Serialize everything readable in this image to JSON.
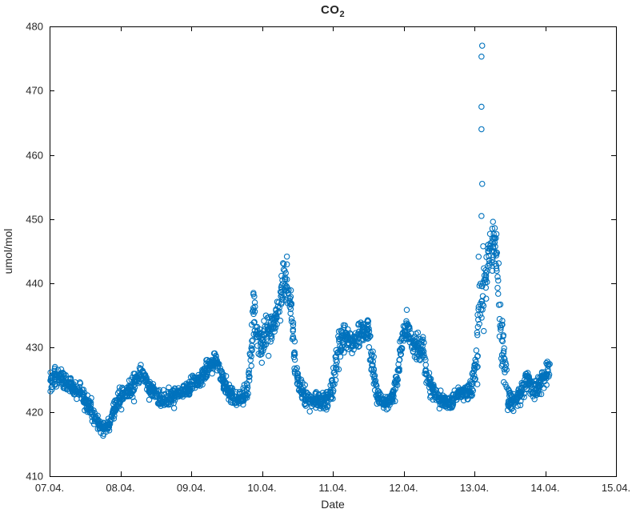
{
  "title": {
    "text": "CO",
    "subscript": "2"
  },
  "axes": {
    "xlabel": "Date",
    "ylabel": "umol/mol"
  },
  "chart_data": {
    "type": "scatter",
    "title": "CO_2",
    "xlabel": "Date",
    "ylabel": "umol/mol",
    "marker": "open-circle",
    "marker_color": "#0072BD",
    "grid": false,
    "legend": null,
    "x_unit": "day of April (7 = 07.04.)",
    "xlim": [
      7,
      15
    ],
    "ylim": [
      410,
      480
    ],
    "xticks": [
      7,
      8,
      9,
      10,
      11,
      12,
      13,
      14,
      15
    ],
    "xtick_labels": [
      "07.04.",
      "08.04.",
      "09.04.",
      "10.04.",
      "11.04.",
      "12.04.",
      "13.04.",
      "14.04.",
      "15.04."
    ],
    "yticks": [
      410,
      420,
      430,
      440,
      450,
      460,
      470,
      480
    ],
    "ytick_labels": [
      "410",
      "420",
      "430",
      "440",
      "450",
      "460",
      "470",
      "480"
    ],
    "points_per_day": 300,
    "trend": [
      [
        7.0,
        424.8,
        0.8
      ],
      [
        7.08,
        425.5,
        0.7
      ],
      [
        7.18,
        425.2,
        0.7
      ],
      [
        7.3,
        424.0,
        0.7
      ],
      [
        7.42,
        423.3,
        0.6
      ],
      [
        7.52,
        421.5,
        0.6
      ],
      [
        7.62,
        419.8,
        0.6
      ],
      [
        7.72,
        417.8,
        0.5
      ],
      [
        7.78,
        417.2,
        0.5
      ],
      [
        7.85,
        418.5,
        0.6
      ],
      [
        7.95,
        421.5,
        0.6
      ],
      [
        8.05,
        422.8,
        0.6
      ],
      [
        8.15,
        423.5,
        0.7
      ],
      [
        8.25,
        425.5,
        0.7
      ],
      [
        8.32,
        426.0,
        0.6
      ],
      [
        8.42,
        423.5,
        0.6
      ],
      [
        8.55,
        422.3,
        0.6
      ],
      [
        8.68,
        422.0,
        0.6
      ],
      [
        8.8,
        422.8,
        0.6
      ],
      [
        8.95,
        423.5,
        0.6
      ],
      [
        9.05,
        424.3,
        0.6
      ],
      [
        9.18,
        425.8,
        0.7
      ],
      [
        9.28,
        427.5,
        0.7
      ],
      [
        9.35,
        427.8,
        0.7
      ],
      [
        9.45,
        425.0,
        0.7
      ],
      [
        9.55,
        422.8,
        0.6
      ],
      [
        9.68,
        422.0,
        0.6
      ],
      [
        9.78,
        423.0,
        0.7
      ],
      [
        9.84,
        427.0,
        1.5
      ],
      [
        9.88,
        436.5,
        1.8
      ],
      [
        9.92,
        433.0,
        1.5
      ],
      [
        9.97,
        430.5,
        1.2
      ],
      [
        10.02,
        431.5,
        1.3
      ],
      [
        10.07,
        433.5,
        1.2
      ],
      [
        10.12,
        432.0,
        1.2
      ],
      [
        10.18,
        434.5,
        1.3
      ],
      [
        10.24,
        436.5,
        1.5
      ],
      [
        10.3,
        440.5,
        1.5
      ],
      [
        10.35,
        440.0,
        1.5
      ],
      [
        10.4,
        437.5,
        1.5
      ],
      [
        10.45,
        429.5,
        1.5
      ],
      [
        10.5,
        424.8,
        0.9
      ],
      [
        10.58,
        422.8,
        0.7
      ],
      [
        10.68,
        421.8,
        0.6
      ],
      [
        10.8,
        421.8,
        0.6
      ],
      [
        10.92,
        421.8,
        0.6
      ],
      [
        11.0,
        424.0,
        0.9
      ],
      [
        11.06,
        428.5,
        1.3
      ],
      [
        11.12,
        431.5,
        1.2
      ],
      [
        11.18,
        432.3,
        1.0
      ],
      [
        11.25,
        430.8,
        1.0
      ],
      [
        11.33,
        431.3,
        1.0
      ],
      [
        11.42,
        432.3,
        1.0
      ],
      [
        11.5,
        433.0,
        1.0
      ],
      [
        11.56,
        427.0,
        1.4
      ],
      [
        11.62,
        422.8,
        0.8
      ],
      [
        11.7,
        421.3,
        0.6
      ],
      [
        11.8,
        421.8,
        0.6
      ],
      [
        11.88,
        423.5,
        0.8
      ],
      [
        11.94,
        428.5,
        1.2
      ],
      [
        12.0,
        432.0,
        1.0
      ],
      [
        12.06,
        433.0,
        0.9
      ],
      [
        12.12,
        430.3,
        0.9
      ],
      [
        12.2,
        430.0,
        0.9
      ],
      [
        12.27,
        429.8,
        0.9
      ],
      [
        12.33,
        425.5,
        0.9
      ],
      [
        12.4,
        424.0,
        0.7
      ],
      [
        12.48,
        422.5,
        0.6
      ],
      [
        12.56,
        421.8,
        0.6
      ],
      [
        12.64,
        421.3,
        0.6
      ],
      [
        12.72,
        422.0,
        0.6
      ],
      [
        12.8,
        423.3,
        0.6
      ],
      [
        12.88,
        422.8,
        0.6
      ],
      [
        12.96,
        423.8,
        0.7
      ],
      [
        13.02,
        427.0,
        1.5
      ],
      [
        13.06,
        436.0,
        4.5
      ],
      [
        13.1,
        438.0,
        4.0
      ],
      [
        13.15,
        440.5,
        2.5
      ],
      [
        13.2,
        444.0,
        2.0
      ],
      [
        13.26,
        447.0,
        1.5
      ],
      [
        13.3,
        445.5,
        1.8
      ],
      [
        13.35,
        436.0,
        2.5
      ],
      [
        13.4,
        429.5,
        2.0
      ],
      [
        13.46,
        423.5,
        1.0
      ],
      [
        13.52,
        421.5,
        0.7
      ],
      [
        13.58,
        421.8,
        0.7
      ],
      [
        13.64,
        423.0,
        0.8
      ],
      [
        13.7,
        424.3,
        0.8
      ],
      [
        13.76,
        424.8,
        0.8
      ],
      [
        13.82,
        423.3,
        0.7
      ],
      [
        13.88,
        423.3,
        0.7
      ],
      [
        13.94,
        424.8,
        0.8
      ],
      [
        14.0,
        426.0,
        0.9
      ],
      [
        14.06,
        426.8,
        0.9
      ]
    ],
    "outliers": [
      [
        13.1,
        450.5
      ],
      [
        13.11,
        455.5
      ],
      [
        13.1,
        464.0
      ],
      [
        13.1,
        467.5
      ],
      [
        13.1,
        475.3
      ],
      [
        13.11,
        477.0
      ]
    ]
  }
}
